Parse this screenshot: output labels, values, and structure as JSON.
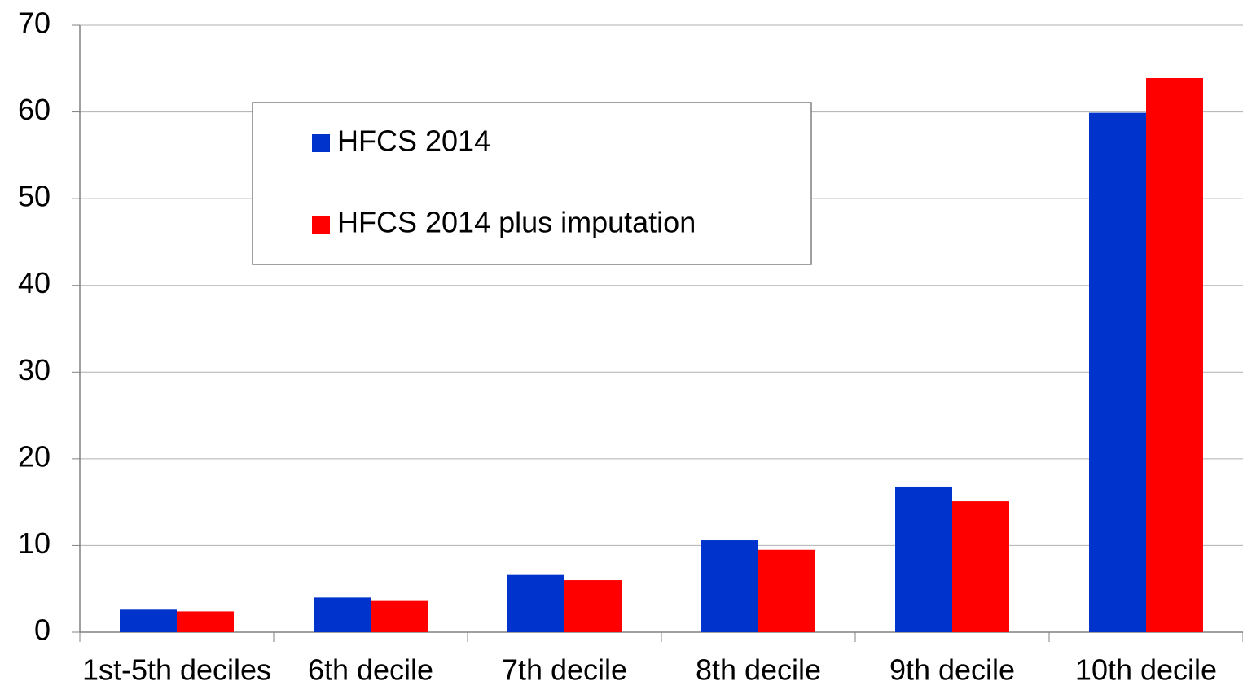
{
  "chart_data": {
    "type": "bar",
    "categories": [
      "1st-5th deciles",
      "6th decile",
      "7th decile",
      "8th decile",
      "9th decile",
      "10th decile"
    ],
    "series": [
      {
        "name": "HFCS 2014",
        "color": "#0033cc",
        "values": [
          2.6,
          4.0,
          6.6,
          10.6,
          16.8,
          59.9
        ]
      },
      {
        "name": "HFCS 2014 plus imputation",
        "color": "#ff0000",
        "values": [
          2.4,
          3.6,
          6.0,
          9.5,
          15.1,
          63.9
        ]
      }
    ],
    "ylim": [
      0,
      70
    ],
    "yticks": [
      0,
      10,
      20,
      30,
      40,
      50,
      60,
      70
    ],
    "grid": true,
    "legend": "upper left"
  }
}
